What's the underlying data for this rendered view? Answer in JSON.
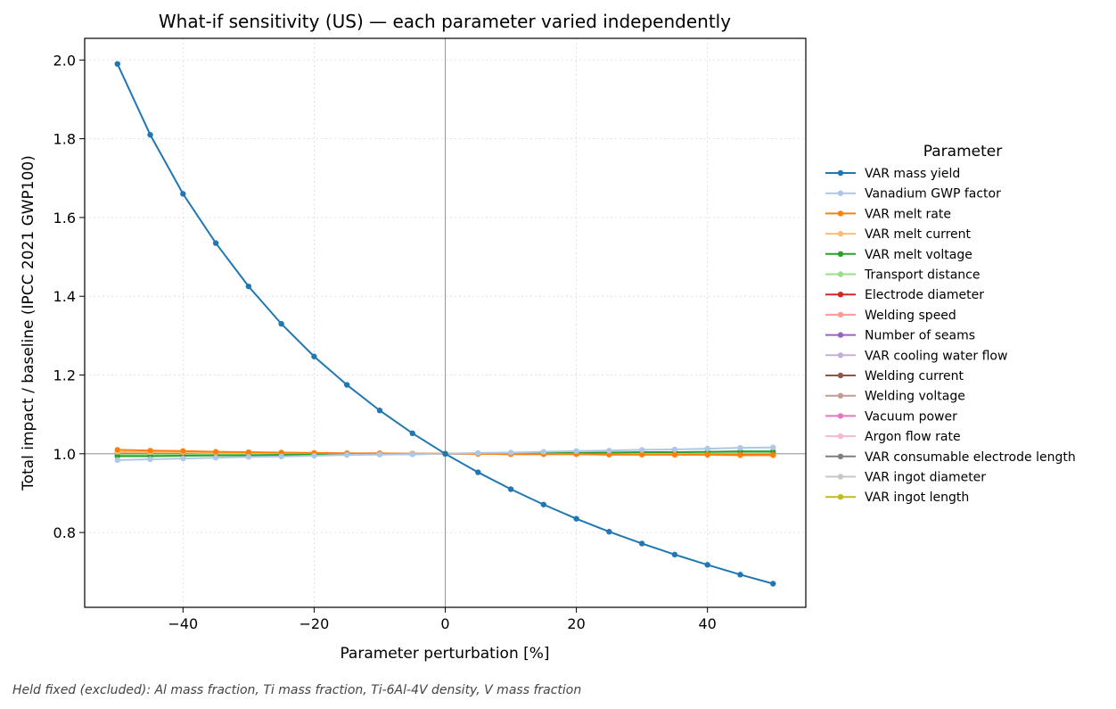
{
  "chart_data": {
    "type": "line",
    "title": "What-if sensitivity (US) — each parameter varied independently",
    "xlabel": "Parameter perturbation [%]",
    "ylabel": "Total impact / baseline (IPCC 2021 GWP100)",
    "xlim": [
      -55,
      55
    ],
    "ylim": [
      0.61,
      2.055
    ],
    "xticks": [
      -40,
      -20,
      0,
      20,
      40
    ],
    "xtick_labels": [
      "−40",
      "−20",
      "0",
      "20",
      "40"
    ],
    "yticks": [
      0.8,
      1.0,
      1.2,
      1.4,
      1.6,
      1.8,
      2.0
    ],
    "ytick_labels": [
      "0.8",
      "1.0",
      "1.2",
      "1.4",
      "1.6",
      "1.8",
      "2.0"
    ],
    "grid": true,
    "reference_lines": {
      "x": 0,
      "y": 1.0
    },
    "legend_title": "Parameter",
    "legend_position": "outside-right",
    "x": [
      -50,
      -45,
      -40,
      -35,
      -30,
      -25,
      -20,
      -15,
      -10,
      -5,
      0,
      5,
      10,
      15,
      20,
      25,
      30,
      35,
      40,
      45,
      50
    ],
    "series": [
      {
        "name": "VAR mass yield",
        "color": "#1f77b4",
        "values": [
          1.99,
          1.81,
          1.66,
          1.535,
          1.425,
          1.33,
          1.247,
          1.175,
          1.11,
          1.052,
          1.0,
          0.953,
          0.91,
          0.871,
          0.835,
          0.802,
          0.772,
          0.744,
          0.718,
          0.693,
          0.67
        ]
      },
      {
        "name": "Vanadium GWP factor",
        "color": "#aec7e8",
        "values": [
          0.984,
          0.986,
          0.988,
          0.99,
          0.992,
          0.993,
          0.995,
          0.997,
          0.998,
          0.999,
          1.0,
          1.002,
          1.003,
          1.005,
          1.007,
          1.008,
          1.01,
          1.011,
          1.013,
          1.015,
          1.016
        ]
      },
      {
        "name": "VAR melt rate",
        "color": "#ff7f0e",
        "values": [
          1.01,
          1.008,
          1.007,
          1.005,
          1.004,
          1.003,
          1.002,
          1.001,
          1.001,
          1.0,
          1.0,
          1.0,
          0.999,
          0.999,
          0.999,
          0.998,
          0.998,
          0.998,
          0.998,
          0.997,
          0.997
        ]
      },
      {
        "name": "VAR melt current",
        "color": "#ffbb78",
        "values": [
          1.005,
          1.004,
          1.004,
          1.003,
          1.003,
          1.002,
          1.002,
          1.001,
          1.001,
          1.0,
          1.0,
          1.0,
          0.999,
          0.999,
          0.999,
          0.998,
          0.998,
          0.997,
          0.997,
          0.996,
          0.996
        ]
      },
      {
        "name": "VAR melt voltage",
        "color": "#2ca02c",
        "values": [
          0.994,
          0.994,
          0.995,
          0.996,
          0.996,
          0.997,
          0.998,
          0.998,
          0.999,
          0.999,
          1.0,
          1.001,
          1.001,
          1.002,
          1.002,
          1.003,
          1.004,
          1.004,
          1.005,
          1.006,
          1.006
        ]
      },
      {
        "name": "Transport distance",
        "color": "#98df8a",
        "values": [
          0.998,
          0.998,
          0.998,
          0.999,
          0.999,
          0.999,
          0.999,
          0.999,
          1.0,
          1.0,
          1.0,
          1.0,
          1.0,
          1.001,
          1.001,
          1.001,
          1.001,
          1.001,
          1.002,
          1.002,
          1.002
        ]
      },
      {
        "name": "Electrode diameter",
        "color": "#d62728",
        "values": [
          0.999,
          0.999,
          0.999,
          0.999,
          1.0,
          1.0,
          1.0,
          1.0,
          1.0,
          1.0,
          1.0,
          1.0,
          1.0,
          1.0,
          1.0,
          1.0,
          1.0,
          1.001,
          1.001,
          1.001,
          1.001
        ]
      },
      {
        "name": "Welding speed",
        "color": "#ff9896",
        "values": [
          1.001,
          1.001,
          1.001,
          1.0,
          1.0,
          1.0,
          1.0,
          1.0,
          1.0,
          1.0,
          1.0,
          1.0,
          1.0,
          1.0,
          1.0,
          1.0,
          1.0,
          1.0,
          1.0,
          1.0,
          1.0
        ]
      },
      {
        "name": "Number of seams",
        "color": "#9467bd",
        "values": [
          1.0,
          1.0,
          1.0,
          1.0,
          1.0,
          1.0,
          1.0,
          1.0,
          1.0,
          1.0,
          1.0,
          1.0,
          1.0,
          1.0,
          1.0,
          1.0,
          1.0,
          1.0,
          1.0,
          1.0,
          1.0
        ]
      },
      {
        "name": "VAR cooling water flow",
        "color": "#c5b0d5",
        "values": [
          1.0,
          1.0,
          1.0,
          1.0,
          1.0,
          1.0,
          1.0,
          1.0,
          1.0,
          1.0,
          1.0,
          1.0,
          1.0,
          1.0,
          1.0,
          1.0,
          1.0,
          1.0,
          1.0,
          1.0,
          1.0
        ]
      },
      {
        "name": "Welding current",
        "color": "#8c564b",
        "values": [
          1.0,
          1.0,
          1.0,
          1.0,
          1.0,
          1.0,
          1.0,
          1.0,
          1.0,
          1.0,
          1.0,
          1.0,
          1.0,
          1.0,
          1.0,
          1.0,
          1.0,
          1.0,
          1.0,
          1.0,
          1.0
        ]
      },
      {
        "name": "Welding voltage",
        "color": "#c49c94",
        "values": [
          1.0,
          1.0,
          1.0,
          1.0,
          1.0,
          1.0,
          1.0,
          1.0,
          1.0,
          1.0,
          1.0,
          1.0,
          1.0,
          1.0,
          1.0,
          1.0,
          1.0,
          1.0,
          1.0,
          1.0,
          1.0
        ]
      },
      {
        "name": "Vacuum power",
        "color": "#e377c2",
        "values": [
          1.0,
          1.0,
          1.0,
          1.0,
          1.0,
          1.0,
          1.0,
          1.0,
          1.0,
          1.0,
          1.0,
          1.0,
          1.0,
          1.0,
          1.0,
          1.0,
          1.0,
          1.0,
          1.0,
          1.0,
          1.0
        ]
      },
      {
        "name": "Argon flow rate",
        "color": "#f7b6d2",
        "values": [
          1.0,
          1.0,
          1.0,
          1.0,
          1.0,
          1.0,
          1.0,
          1.0,
          1.0,
          1.0,
          1.0,
          1.0,
          1.0,
          1.0,
          1.0,
          1.0,
          1.0,
          1.0,
          1.0,
          1.0,
          1.0
        ]
      },
      {
        "name": "VAR consumable electrode length",
        "color": "#7f7f7f",
        "values": [
          1.0,
          1.0,
          1.0,
          1.0,
          1.0,
          1.0,
          1.0,
          1.0,
          1.0,
          1.0,
          1.0,
          1.0,
          1.0,
          1.0,
          1.0,
          1.0,
          1.0,
          1.0,
          1.0,
          1.0,
          1.0
        ]
      },
      {
        "name": "VAR ingot diameter",
        "color": "#c7c7c7",
        "values": [
          1.0,
          1.0,
          1.0,
          1.0,
          1.0,
          1.0,
          1.0,
          1.0,
          1.0,
          1.0,
          1.0,
          1.0,
          1.0,
          1.0,
          1.0,
          1.0,
          1.0,
          1.0,
          1.0,
          1.0,
          1.0
        ]
      },
      {
        "name": "VAR ingot length",
        "color": "#bcbd22",
        "values": [
          1.001,
          1.001,
          1.001,
          1.001,
          1.001,
          1.0,
          1.0,
          1.0,
          1.0,
          1.0,
          1.0,
          1.0,
          1.0,
          1.0,
          1.0,
          1.0,
          1.0,
          1.0,
          1.0,
          1.0,
          1.0
        ]
      }
    ]
  },
  "footnote": "Held fixed (excluded): Al mass fraction, Ti mass fraction, Ti-6Al-4V density, V mass fraction"
}
